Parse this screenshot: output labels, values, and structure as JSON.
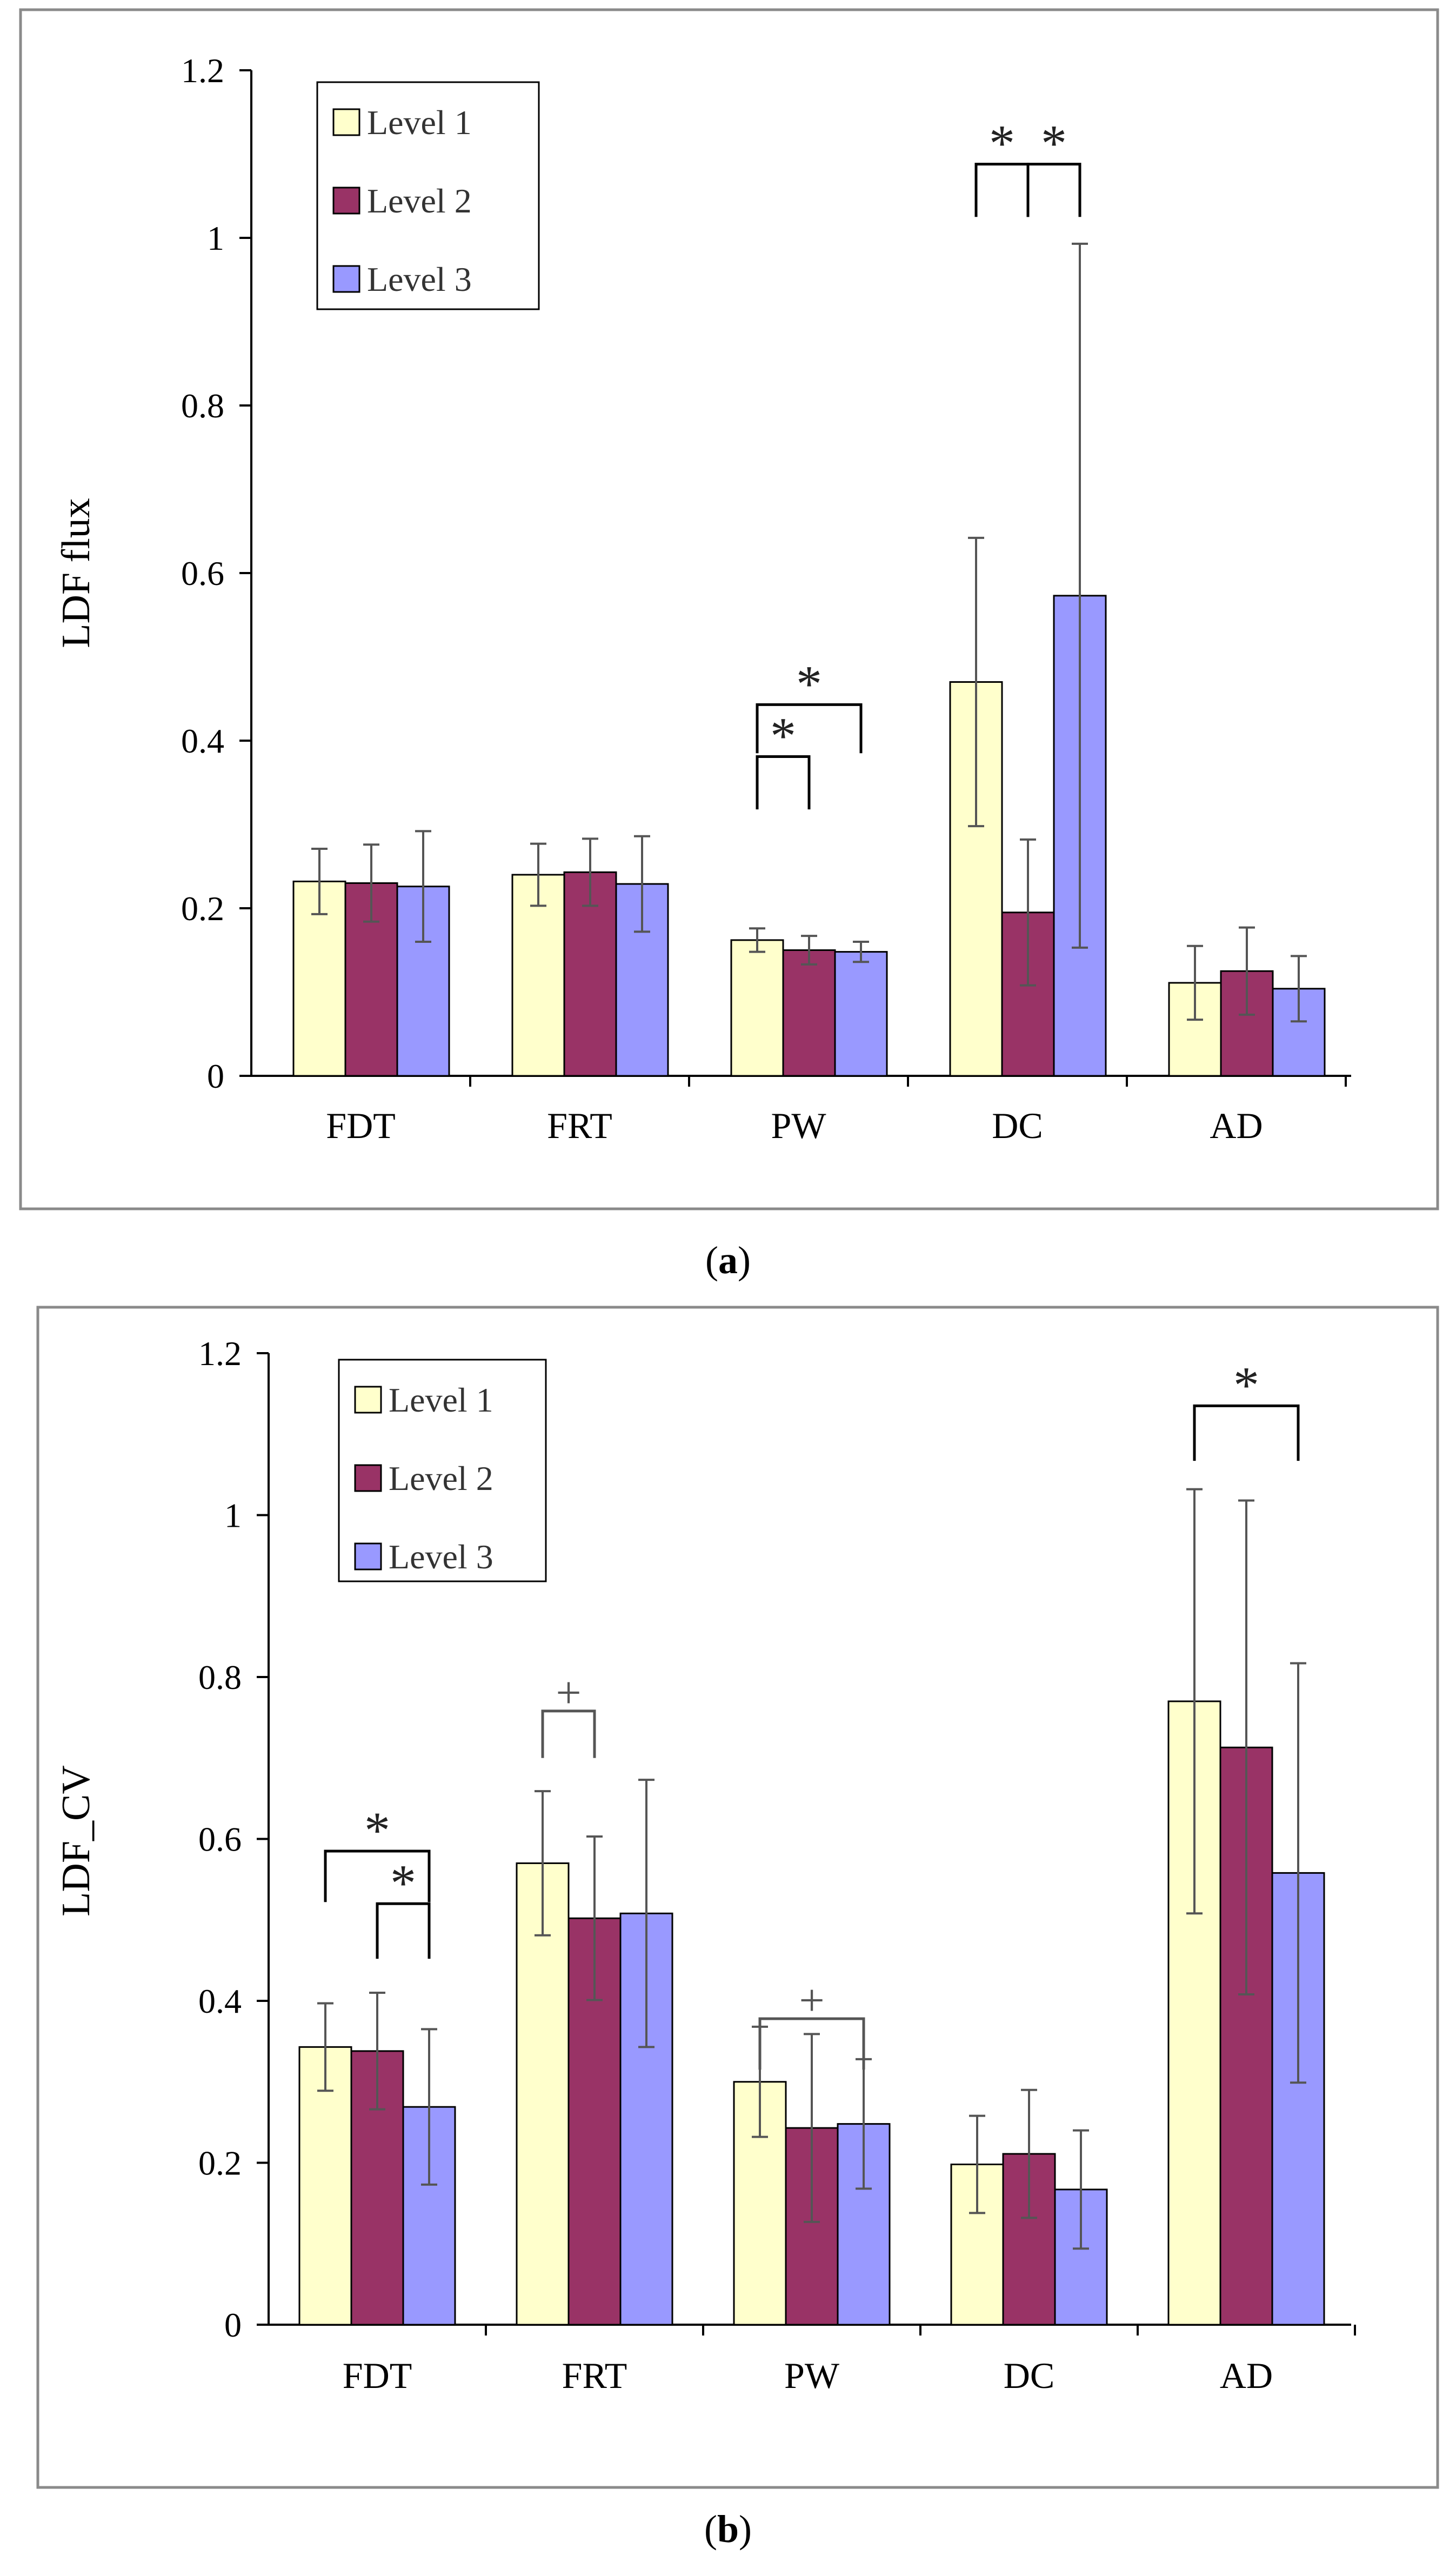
{
  "chart_data": [
    {
      "type": "bar",
      "panel_label": "a",
      "ylabel": "LDF flux",
      "ylim": [
        0,
        1.2
      ],
      "yticks": [
        "0",
        "0.2",
        "0.4",
        "0.6",
        "0.8",
        "1",
        "1.2"
      ],
      "categories": [
        "FDT",
        "FRT",
        "PW",
        "DC",
        "AD"
      ],
      "series": [
        {
          "name": "Level 1",
          "color": "#ffffcc",
          "values": [
            0.232,
            0.24,
            0.162,
            0.47,
            0.111
          ],
          "errors": [
            0.039,
            0.037,
            0.014,
            0.172,
            0.044
          ]
        },
        {
          "name": "Level 2",
          "color": "#993366",
          "values": [
            0.23,
            0.243,
            0.15,
            0.195,
            0.125
          ],
          "errors": [
            0.046,
            0.04,
            0.017,
            0.087,
            0.052
          ]
        },
        {
          "name": "Level 3",
          "color": "#9999ff",
          "values": [
            0.226,
            0.229,
            0.148,
            0.573,
            0.104
          ],
          "errors": [
            0.066,
            0.057,
            0.012,
            0.42,
            0.039
          ]
        }
      ],
      "annotations": [
        {
          "label": "*",
          "category": 2,
          "from": 0,
          "to": 1,
          "level": 0.381,
          "drop": 0.063
        },
        {
          "label": "*",
          "category": 2,
          "from": 0,
          "to": 2,
          "level": 0.443,
          "drop": 0.058
        },
        {
          "label": "*",
          "category": 3,
          "from": 0,
          "to": 1,
          "level": 1.088,
          "drop": 0.063
        },
        {
          "label": "*",
          "category": 3,
          "from": 1,
          "to": 2,
          "level": 1.088,
          "drop": 0.063
        }
      ]
    },
    {
      "type": "bar",
      "panel_label": "b",
      "ylabel": "LDF_CV",
      "ylim": [
        0,
        1.2
      ],
      "yticks": [
        "0",
        "0.2",
        "0.4",
        "0.6",
        "0.8",
        "1",
        "1.2"
      ],
      "categories": [
        "FDT",
        "FRT",
        "PW",
        "DC",
        "AD"
      ],
      "series": [
        {
          "name": "Level 1",
          "color": "#ffffcc",
          "values": [
            0.343,
            0.57,
            0.3,
            0.198,
            0.77
          ],
          "errors": [
            0.054,
            0.089,
            0.068,
            0.06,
            0.262
          ]
        },
        {
          "name": "Level 2",
          "color": "#993366",
          "values": [
            0.338,
            0.502,
            0.243,
            0.211,
            0.713
          ],
          "errors": [
            0.072,
            0.101,
            0.116,
            0.079,
            0.305
          ]
        },
        {
          "name": "Level 3",
          "color": "#9999ff",
          "values": [
            0.269,
            0.508,
            0.248,
            0.167,
            0.558
          ],
          "errors": [
            0.096,
            0.165,
            0.08,
            0.073,
            0.259
          ]
        }
      ],
      "annotations": [
        {
          "label": "*",
          "category": 0,
          "from": 0,
          "to": 2,
          "level": 0.585,
          "drop": 0.063
        },
        {
          "label": "*",
          "category": 0,
          "from": 1,
          "to": 2,
          "level": 0.52,
          "drop": 0.068
        },
        {
          "label": "+",
          "category": 1,
          "from": 0,
          "to": 1,
          "level": 0.758,
          "drop": 0.058
        },
        {
          "label": "+",
          "category": 2,
          "from": 0,
          "to": 2,
          "level": 0.378,
          "drop": 0.063
        },
        {
          "label": "*",
          "category": 4,
          "from": 0,
          "to": 2,
          "level": 1.135,
          "drop": 0.068
        }
      ]
    }
  ],
  "captions": {
    "a": {
      "open": "(",
      "letter": "a",
      "close": ")"
    },
    "b": {
      "open": "(",
      "letter": "b",
      "close": ")"
    }
  }
}
